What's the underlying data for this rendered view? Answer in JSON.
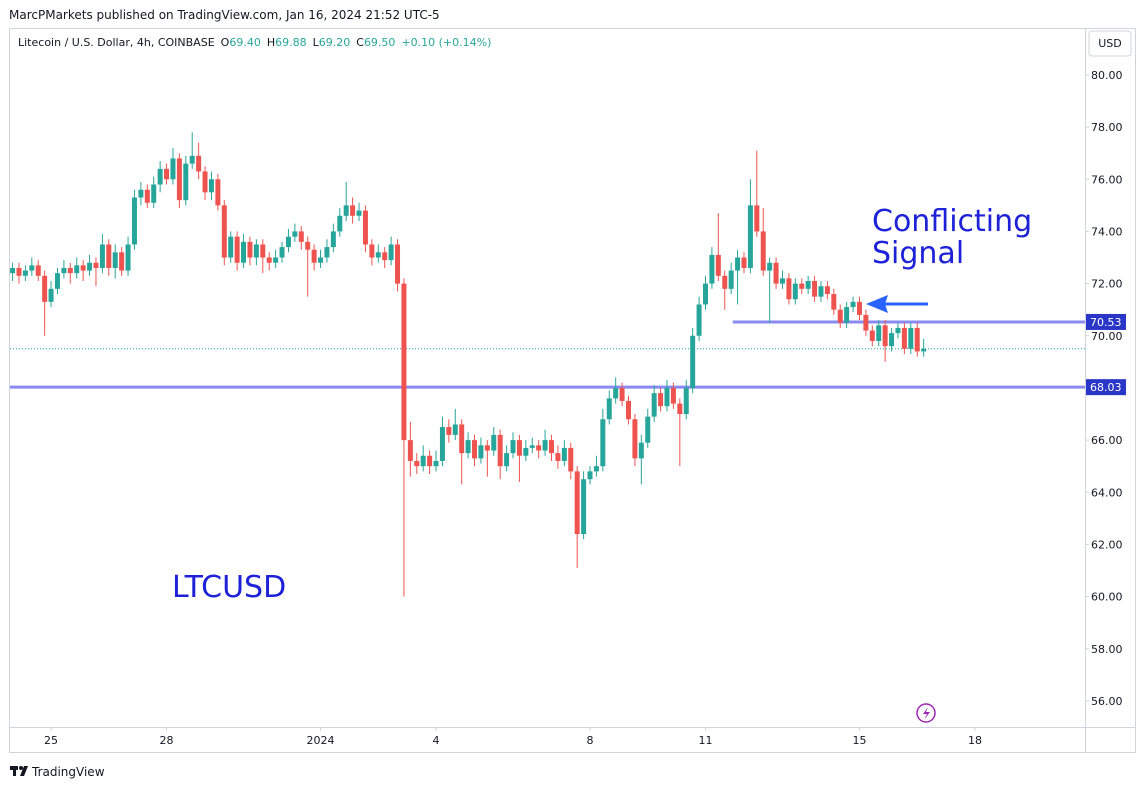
{
  "header": {
    "publisher": "MarcPMarkets published on TradingView.com, Jan 16, 2024 21:52 UTC-5",
    "brand": "TradingView",
    "currency_button": "USD"
  },
  "chart_data": {
    "type": "candlestick",
    "title": "Litecoin / U.S. Dollar, 4h, COINBASE",
    "legend_items": [
      {
        "key": "O",
        "value": "69.40"
      },
      {
        "key": "H",
        "value": "69.88"
      },
      {
        "key": "L",
        "value": "69.20"
      },
      {
        "key": "C",
        "value": "69.50"
      }
    ],
    "change": "+0.10 (+0.14%)",
    "up_color": "#26a69a",
    "down_color": "#ef5350",
    "annotations": [
      "Conflicting",
      "Signal",
      "LTCUSD"
    ],
    "xlim": [
      -25.6,
      644.6
    ],
    "xticks": [
      {
        "value": 0,
        "label": "25"
      },
      {
        "value": 72,
        "label": "28"
      },
      {
        "value": 168,
        "label": "2024"
      },
      {
        "value": 240,
        "label": "4"
      },
      {
        "value": 336,
        "label": "8"
      },
      {
        "value": 408,
        "label": "11"
      },
      {
        "value": 504,
        "label": "15"
      },
      {
        "value": 576,
        "label": "18"
      }
    ],
    "ylim": [
      55,
      81.8
    ],
    "yticks": [
      {
        "value": 56,
        "label": "56.00"
      },
      {
        "value": 58,
        "label": "58.00"
      },
      {
        "value": 60,
        "label": "60.00"
      },
      {
        "value": 62,
        "label": "62.00"
      },
      {
        "value": 64,
        "label": "64.00"
      },
      {
        "value": 66,
        "label": "66.00"
      },
      {
        "value": 68,
        "label": "68.00"
      },
      {
        "value": 70,
        "label": "70.00"
      },
      {
        "value": 72,
        "label": "72.00"
      },
      {
        "value": 74,
        "label": "74.00"
      },
      {
        "value": 76,
        "label": "76.00"
      },
      {
        "value": 78,
        "label": "78.00"
      },
      {
        "value": 80,
        "label": "80.00"
      }
    ],
    "hlines": [
      {
        "value": 70.53,
        "label": "70.53",
        "from": 425,
        "color": "#8a8af2"
      },
      {
        "value": 68.03,
        "label": "68.03",
        "color": "#8a8af2"
      }
    ],
    "x": [
      -24,
      -20,
      -16,
      -12,
      -8,
      -4,
      0,
      4,
      8,
      12,
      16,
      20,
      24,
      28,
      32,
      36,
      40,
      44,
      48,
      52,
      56,
      60,
      64,
      68,
      72,
      76,
      80,
      84,
      88,
      92,
      96,
      100,
      104,
      108,
      112,
      116,
      120,
      124,
      128,
      132,
      136,
      140,
      144,
      148,
      152,
      156,
      160,
      164,
      168,
      172,
      176,
      180,
      184,
      188,
      192,
      196,
      200,
      204,
      208,
      212,
      216,
      220,
      224,
      228,
      232,
      236,
      240,
      244,
      248,
      252,
      256,
      260,
      264,
      268,
      272,
      276,
      280,
      284,
      288,
      292,
      296,
      300,
      304,
      308,
      312,
      316,
      320,
      324,
      328,
      332,
      336,
      340,
      344,
      348,
      352,
      356,
      360,
      364,
      368,
      372,
      376,
      380,
      384,
      388,
      392,
      396,
      400,
      404,
      408,
      412,
      416,
      420,
      424,
      428,
      432,
      436,
      440,
      444,
      448,
      452,
      456,
      460,
      464,
      468,
      472,
      476,
      480,
      484,
      488,
      492,
      496,
      500,
      504,
      508,
      512,
      516,
      520,
      524,
      528,
      532,
      536,
      540,
      544
    ],
    "ohlc": [
      [
        72.4,
        72.8,
        72.1,
        72.6
      ],
      [
        72.6,
        72.8,
        72.0,
        72.3
      ],
      [
        72.3,
        72.7,
        72.1,
        72.5
      ],
      [
        72.5,
        73.0,
        72.3,
        72.7
      ],
      [
        72.7,
        72.9,
        72.1,
        72.3
      ],
      [
        72.3,
        72.5,
        70.0,
        71.3
      ],
      [
        71.3,
        72.1,
        71.1,
        71.8
      ],
      [
        71.8,
        72.6,
        71.6,
        72.4
      ],
      [
        72.4,
        72.9,
        72.2,
        72.6
      ],
      [
        72.6,
        72.8,
        72.0,
        72.4
      ],
      [
        72.4,
        73.0,
        72.2,
        72.7
      ],
      [
        72.7,
        72.9,
        72.1,
        72.5
      ],
      [
        72.5,
        73.1,
        72.3,
        72.8
      ],
      [
        72.8,
        73.0,
        71.9,
        72.6
      ],
      [
        72.6,
        73.9,
        72.4,
        73.5
      ],
      [
        73.5,
        73.7,
        72.3,
        72.6
      ],
      [
        72.6,
        73.5,
        72.2,
        73.2
      ],
      [
        73.2,
        73.4,
        72.3,
        72.5
      ],
      [
        72.5,
        73.8,
        72.3,
        73.5
      ],
      [
        73.5,
        75.6,
        73.3,
        75.3
      ],
      [
        75.3,
        75.9,
        75.0,
        75.6
      ],
      [
        75.6,
        75.8,
        74.9,
        75.1
      ],
      [
        75.1,
        76.1,
        74.9,
        75.8
      ],
      [
        75.8,
        76.7,
        75.5,
        76.4
      ],
      [
        76.4,
        76.6,
        75.8,
        76.0
      ],
      [
        76.0,
        77.2,
        75.8,
        76.8
      ],
      [
        76.8,
        77.0,
        74.9,
        75.2
      ],
      [
        75.2,
        76.9,
        75.0,
        76.6
      ],
      [
        76.6,
        77.8,
        76.4,
        76.9
      ],
      [
        76.9,
        77.4,
        76.0,
        76.3
      ],
      [
        76.3,
        76.5,
        75.2,
        75.5
      ],
      [
        75.5,
        76.3,
        75.2,
        76.0
      ],
      [
        76.0,
        76.2,
        74.8,
        75.0
      ],
      [
        75.0,
        75.2,
        72.7,
        73.0
      ],
      [
        73.0,
        74.0,
        72.8,
        73.8
      ],
      [
        73.8,
        74.0,
        72.5,
        72.8
      ],
      [
        72.8,
        73.9,
        72.6,
        73.6
      ],
      [
        73.6,
        73.8,
        72.7,
        73.0
      ],
      [
        73.0,
        73.7,
        72.7,
        73.5
      ],
      [
        73.5,
        73.7,
        72.4,
        73.0
      ],
      [
        73.0,
        73.2,
        72.5,
        72.8
      ],
      [
        72.8,
        73.3,
        72.6,
        73.0
      ],
      [
        73.0,
        73.6,
        72.8,
        73.4
      ],
      [
        73.4,
        74.1,
        73.2,
        73.8
      ],
      [
        73.8,
        74.3,
        73.6,
        74.0
      ],
      [
        74.0,
        74.2,
        73.3,
        73.6
      ],
      [
        73.6,
        73.8,
        71.5,
        73.3
      ],
      [
        73.3,
        73.5,
        72.5,
        72.8
      ],
      [
        72.8,
        73.3,
        72.6,
        73.0
      ],
      [
        73.0,
        73.7,
        72.8,
        73.4
      ],
      [
        73.4,
        74.3,
        73.2,
        74.0
      ],
      [
        74.0,
        74.9,
        73.8,
        74.6
      ],
      [
        74.6,
        75.9,
        74.4,
        75.0
      ],
      [
        75.0,
        75.3,
        74.3,
        74.6
      ],
      [
        74.6,
        75.1,
        74.4,
        74.8
      ],
      [
        74.8,
        75.0,
        73.2,
        73.5
      ],
      [
        73.5,
        73.7,
        72.7,
        73.0
      ],
      [
        73.0,
        73.5,
        72.8,
        73.2
      ],
      [
        73.2,
        73.4,
        72.6,
        72.9
      ],
      [
        72.9,
        73.8,
        72.7,
        73.5
      ],
      [
        73.5,
        73.7,
        71.7,
        72.0
      ],
      [
        72.0,
        72.2,
        60.0,
        66.0
      ],
      [
        66.0,
        66.7,
        64.6,
        65.2
      ],
      [
        65.2,
        65.5,
        64.7,
        65.0
      ],
      [
        65.0,
        65.8,
        64.8,
        65.4
      ],
      [
        65.4,
        65.6,
        64.7,
        65.0
      ],
      [
        65.0,
        65.6,
        64.8,
        65.2
      ],
      [
        65.2,
        66.9,
        65.0,
        66.5
      ],
      [
        66.5,
        66.8,
        65.9,
        66.2
      ],
      [
        66.2,
        67.2,
        66.0,
        66.6
      ],
      [
        66.6,
        66.8,
        64.3,
        65.5
      ],
      [
        65.5,
        66.3,
        65.3,
        66.0
      ],
      [
        66.0,
        66.2,
        65.0,
        65.3
      ],
      [
        65.3,
        66.1,
        65.1,
        65.8
      ],
      [
        65.8,
        66.0,
        64.6,
        65.6
      ],
      [
        65.6,
        66.5,
        65.4,
        66.2
      ],
      [
        66.2,
        66.4,
        64.5,
        65.0
      ],
      [
        65.0,
        65.8,
        64.8,
        65.5
      ],
      [
        65.5,
        66.3,
        65.3,
        66.0
      ],
      [
        66.0,
        66.2,
        64.4,
        65.4
      ],
      [
        65.4,
        66.0,
        65.2,
        65.7
      ],
      [
        65.7,
        66.1,
        65.5,
        65.8
      ],
      [
        65.8,
        66.0,
        65.3,
        65.6
      ],
      [
        65.6,
        66.4,
        65.4,
        66.0
      ],
      [
        66.0,
        66.2,
        65.2,
        65.5
      ],
      [
        65.5,
        65.8,
        64.9,
        65.2
      ],
      [
        65.2,
        66.0,
        65.0,
        65.7
      ],
      [
        65.7,
        65.9,
        64.5,
        64.8
      ],
      [
        64.8,
        65.0,
        61.1,
        62.4
      ],
      [
        62.4,
        64.8,
        62.2,
        64.5
      ],
      [
        64.5,
        65.0,
        64.3,
        64.8
      ],
      [
        64.8,
        65.4,
        64.6,
        65.0
      ],
      [
        65.0,
        67.2,
        64.8,
        66.8
      ],
      [
        66.8,
        67.9,
        66.6,
        67.6
      ],
      [
        67.6,
        68.4,
        67.4,
        68.0
      ],
      [
        68.0,
        68.2,
        67.3,
        67.5
      ],
      [
        67.5,
        67.7,
        66.6,
        66.8
      ],
      [
        66.8,
        67.0,
        65.0,
        65.3
      ],
      [
        65.3,
        66.2,
        64.3,
        65.9
      ],
      [
        65.9,
        67.2,
        65.7,
        66.9
      ],
      [
        66.9,
        68.1,
        66.7,
        67.8
      ],
      [
        67.8,
        68.0,
        67.1,
        67.3
      ],
      [
        67.3,
        68.3,
        67.1,
        68.0
      ],
      [
        68.0,
        68.2,
        67.2,
        67.4
      ],
      [
        67.4,
        67.6,
        65.0,
        67.0
      ],
      [
        67.0,
        68.3,
        66.8,
        68.0
      ],
      [
        68.0,
        70.3,
        67.8,
        70.0
      ],
      [
        70.0,
        71.5,
        69.8,
        71.2
      ],
      [
        71.2,
        72.3,
        71.0,
        72.0
      ],
      [
        72.0,
        73.4,
        71.8,
        73.1
      ],
      [
        73.1,
        74.7,
        72.1,
        72.3
      ],
      [
        72.3,
        72.5,
        71.0,
        71.8
      ],
      [
        71.8,
        72.8,
        71.6,
        72.5
      ],
      [
        72.5,
        73.3,
        71.2,
        73.0
      ],
      [
        73.0,
        73.2,
        72.4,
        72.6
      ],
      [
        72.6,
        76.0,
        72.4,
        75.0
      ],
      [
        75.0,
        77.1,
        73.8,
        74.0
      ],
      [
        74.0,
        74.9,
        72.3,
        72.5
      ],
      [
        72.5,
        73.0,
        70.5,
        72.8
      ],
      [
        72.8,
        73.0,
        71.8,
        72.0
      ],
      [
        72.0,
        72.5,
        71.8,
        72.2
      ],
      [
        72.2,
        72.4,
        71.2,
        71.4
      ],
      [
        71.4,
        72.2,
        71.2,
        72.0
      ],
      [
        72.0,
        72.2,
        71.6,
        71.8
      ],
      [
        71.8,
        72.3,
        71.6,
        72.1
      ],
      [
        72.1,
        72.3,
        71.3,
        71.5
      ],
      [
        71.5,
        72.1,
        71.3,
        71.9
      ],
      [
        71.9,
        72.1,
        71.4,
        71.6
      ],
      [
        71.6,
        71.8,
        70.8,
        71.0
      ],
      [
        71.0,
        71.2,
        70.3,
        70.5
      ],
      [
        70.5,
        71.3,
        70.3,
        71.1
      ],
      [
        71.1,
        71.5,
        70.9,
        71.3
      ],
      [
        71.3,
        71.5,
        70.6,
        70.8
      ],
      [
        70.8,
        71.0,
        70.0,
        70.2
      ],
      [
        70.2,
        70.4,
        69.6,
        69.8
      ],
      [
        69.8,
        70.6,
        69.6,
        70.4
      ],
      [
        70.4,
        70.6,
        69.0,
        69.6
      ],
      [
        69.6,
        70.3,
        69.4,
        70.1
      ],
      [
        70.1,
        70.5,
        69.9,
        70.3
      ],
      [
        70.3,
        70.5,
        69.3,
        69.5
      ],
      [
        69.5,
        70.5,
        69.3,
        70.3
      ],
      [
        70.3,
        70.5,
        69.2,
        69.4
      ],
      [
        69.4,
        69.88,
        69.2,
        69.5
      ]
    ]
  }
}
